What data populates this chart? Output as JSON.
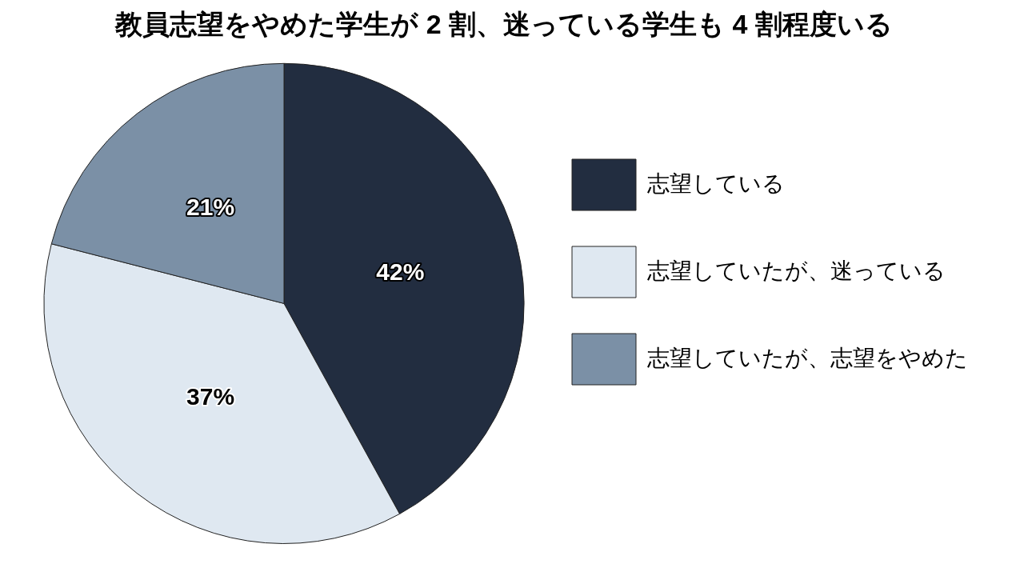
{
  "chart_data": {
    "type": "pie",
    "title": "教員志望をやめた学生が 2 割、迷っている学生も 4 割程度いる",
    "categories": [
      "志望している",
      "志望していたが、迷っている",
      "志望していたが、志望をやめた"
    ],
    "values": [
      42,
      37,
      21
    ],
    "colors": [
      "#222d40",
      "#dfe8f1",
      "#7b90a6"
    ],
    "value_labels": [
      "42%",
      "37%",
      "21%"
    ],
    "legend": "right"
  }
}
